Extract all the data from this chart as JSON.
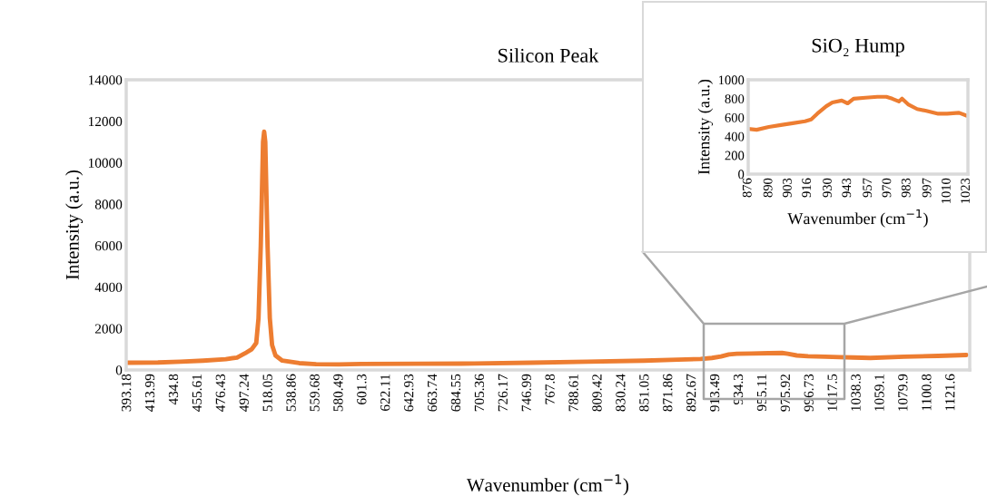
{
  "chart_data": [
    {
      "type": "line",
      "title": "Silicon Peak",
      "xlabel": "Wavenumber (cm$^{−1}$)",
      "ylabel": "Intensity (a.u.)",
      "series": [
        {
          "color": "#ed7d31",
          "x": [
            393,
            420,
            440,
            460,
            480,
            490,
            497,
            503,
            507,
            509,
            511,
            513,
            514,
            515,
            517,
            519,
            521,
            524,
            530,
            545,
            560,
            580,
            600,
            650,
            700,
            750,
            800,
            850,
            880,
            900,
            910,
            918,
            925,
            932,
            945,
            960,
            972,
            977,
            985,
            995,
            1010,
            1023,
            1035,
            1050,
            1080,
            1110,
            1135
          ],
          "values": [
            350,
            360,
            400,
            450,
            520,
            600,
            800,
            1000,
            1300,
            2500,
            6000,
            11000,
            11500,
            11000,
            6000,
            2500,
            1200,
            700,
            450,
            330,
            280,
            270,
            290,
            300,
            310,
            350,
            400,
            450,
            500,
            530,
            580,
            650,
            750,
            780,
            790,
            810,
            820,
            780,
            700,
            660,
            640,
            620,
            600,
            580,
            640,
            680,
            720
          ]
        }
      ],
      "xlim": [
        392,
        1138
      ],
      "ylim": [
        0,
        14000
      ],
      "xticks": [
        393.18,
        413.99,
        434.8,
        455.61,
        476.43,
        497.24,
        518.05,
        538.86,
        559.68,
        580.49,
        601.3,
        622.11,
        642.93,
        663.74,
        684.55,
        705.36,
        726.17,
        746.99,
        767.8,
        788.61,
        809.42,
        830.24,
        851.05,
        871.86,
        892.67,
        913.49,
        934.3,
        955.11,
        975.92,
        996.73,
        1017.5,
        1038.3,
        1059.1,
        1079.9,
        1100.8,
        1121.6
      ],
      "yticks": [
        0,
        2000,
        4000,
        6000,
        8000,
        10000,
        12000,
        14000
      ]
    },
    {
      "type": "line",
      "title": "SiO₂ Hump",
      "xlabel": "Wavenumber (cm$^{−1}$)",
      "ylabel": "Intensity (a.u.)",
      "series": [
        {
          "color": "#ed7d31",
          "x": [
            876,
            881.7,
            889.9,
            898,
            906,
            914.3,
            918.4,
            922.5,
            928.6,
            932.7,
            939,
            943,
            947,
            955,
            963,
            969,
            973,
            977.5,
            979.6,
            983.7,
            989.8,
            996,
            1004,
            1010,
            1018,
            1023
          ],
          "values": [
            480,
            470,
            500,
            520,
            540,
            560,
            580,
            640,
            720,
            760,
            780,
            750,
            800,
            810,
            820,
            820,
            800,
            770,
            800,
            740,
            690,
            670,
            640,
            640,
            650,
            620
          ]
        }
      ],
      "xlim": [
        876,
        1024
      ],
      "ylim": [
        0,
        1000
      ],
      "xticks": [
        876,
        890,
        903,
        916,
        930,
        943,
        957,
        970,
        983,
        997,
        1010,
        1023
      ],
      "yticks": [
        0,
        200,
        400,
        600,
        800,
        1000
      ]
    }
  ]
}
